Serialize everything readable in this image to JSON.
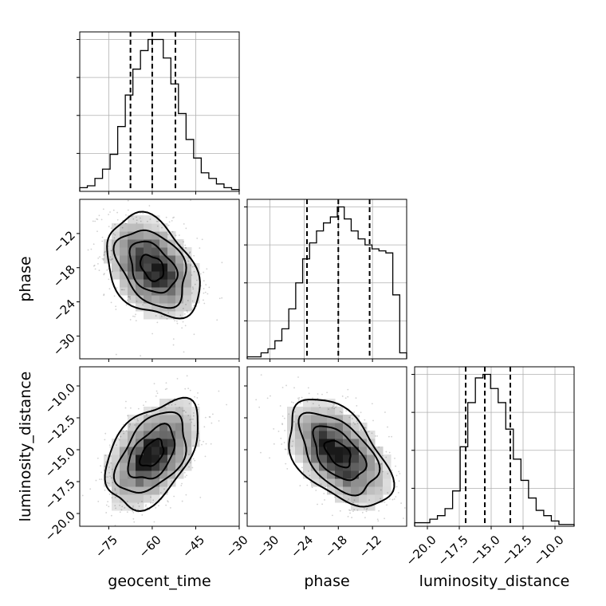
{
  "chart_data": {
    "type": "corner",
    "parameters": [
      "geocent_time",
      "phase",
      "luminosity_distance"
    ],
    "axis_labels": {
      "geocent_time": "geocent_time",
      "phase": "phase",
      "luminosity_distance": "luminosity_distance"
    },
    "ranges": {
      "geocent_time": [
        -85,
        -30
      ],
      "phase": [
        -34,
        -6
      ],
      "luminosity_distance": [
        -21,
        -8.5
      ]
    },
    "ticks": {
      "geocent_time": {
        "values": [
          -75,
          -60,
          -45,
          -30
        ],
        "labels": [
          "−75",
          "−60",
          "−45",
          "−30"
        ]
      },
      "phase": {
        "values": [
          -30,
          -24,
          -18,
          -12
        ],
        "labels": [
          "−30",
          "−24",
          "−18",
          "−12"
        ]
      },
      "luminosity_distance": {
        "values": [
          -20,
          -17.5,
          -15,
          -12.5,
          -10
        ],
        "labels": [
          "−20.0",
          "−17.5",
          "−15.0",
          "−12.5",
          "−10.0"
        ]
      }
    },
    "quantiles": {
      "geocent_time": [
        -67.5,
        -60,
        -52
      ],
      "phase": [
        -23.5,
        -18,
        -12.5
      ],
      "luminosity_distance": [
        -17,
        -15.5,
        -13.5
      ]
    },
    "histograms": {
      "geocent_time": [
        2,
        3,
        7,
        12,
        20,
        35,
        52,
        66,
        76,
        82,
        82,
        72,
        58,
        42,
        28,
        18,
        10,
        7,
        4,
        2,
        1
      ],
      "phase": [
        1,
        1,
        3,
        5,
        9,
        15,
        25,
        38,
        50,
        58,
        64,
        68,
        71,
        76,
        70,
        64,
        60,
        57,
        55,
        54,
        53,
        32,
        3
      ],
      "luminosity_distance": [
        2,
        2,
        4,
        6,
        10,
        20,
        45,
        70,
        84,
        86,
        78,
        70,
        55,
        38,
        26,
        16,
        9,
        6,
        3,
        1,
        1
      ]
    },
    "pairs": [
      {
        "x": "geocent_time",
        "y": "phase",
        "mean": [
          -60,
          -18
        ],
        "sd": [
          8,
          4.5
        ],
        "rho": -0.35
      },
      {
        "x": "geocent_time",
        "y": "luminosity_distance",
        "mean": [
          -60,
          -15.3
        ],
        "sd": [
          8,
          2.1
        ],
        "rho": 0.45
      },
      {
        "x": "phase",
        "y": "luminosity_distance",
        "mean": [
          -18,
          -15.3
        ],
        "sd": [
          4.5,
          2.1
        ],
        "rho": -0.5
      }
    ],
    "grid": true,
    "levels_sigma": [
      0.5,
      1.0,
      1.5,
      2.0
    ]
  }
}
